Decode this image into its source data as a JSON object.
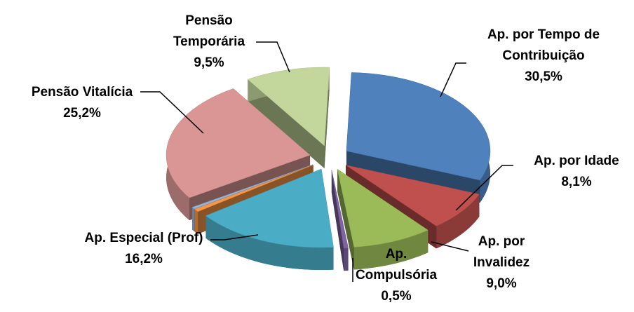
{
  "chart_data": {
    "type": "pie",
    "categories": [
      "Ap. por Tempo de Contribuição",
      "Ap. por Idade",
      "Ap. por Invalidez",
      "Ap. Compulsória",
      "Ap. Especial (Prof)",
      null,
      null,
      "Pensão Vitalícia",
      "Pensão Temporária"
    ],
    "values": [
      30.5,
      8.1,
      9.0,
      0.5,
      16.2,
      0.6,
      0.4,
      25.2,
      9.5
    ],
    "value_labels": [
      "30,5%",
      "8,1%",
      "9,0%",
      "0,5%",
      "16,2%",
      null,
      null,
      "25,2%",
      "9,5%"
    ],
    "colors": [
      "#4f81bd",
      "#c0504d",
      "#9bbb59",
      "#8064a2",
      "#4bacc6",
      "#f79646",
      "#95b3d7",
      "#d99694",
      "#c3d69b"
    ]
  }
}
